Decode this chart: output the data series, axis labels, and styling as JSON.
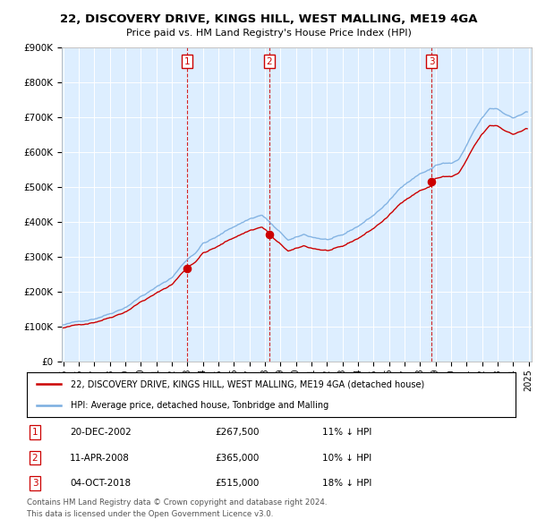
{
  "title1": "22, DISCOVERY DRIVE, KINGS HILL, WEST MALLING, ME19 4GA",
  "title2": "Price paid vs. HM Land Registry's House Price Index (HPI)",
  "ylim": [
    0,
    900000
  ],
  "yticks": [
    0,
    100000,
    200000,
    300000,
    400000,
    500000,
    600000,
    700000,
    800000,
    900000
  ],
  "ytick_labels": [
    "£0",
    "£100K",
    "£200K",
    "£300K",
    "£400K",
    "£500K",
    "£600K",
    "£700K",
    "£800K",
    "£900K"
  ],
  "hpi_color": "#7aade0",
  "sale_color": "#cc0000",
  "dashed_color": "#cc0000",
  "sale_points": [
    {
      "year": 2002.97,
      "price": 267500,
      "label": "1"
    },
    {
      "year": 2008.28,
      "price": 365000,
      "label": "2"
    },
    {
      "year": 2018.75,
      "price": 515000,
      "label": "3"
    }
  ],
  "legend_sale": "22, DISCOVERY DRIVE, KINGS HILL, WEST MALLING, ME19 4GA (detached house)",
  "legend_hpi": "HPI: Average price, detached house, Tonbridge and Malling",
  "table_rows": [
    {
      "num": "1",
      "date": "20-DEC-2002",
      "price": "£267,500",
      "pct": "11% ↓ HPI"
    },
    {
      "num": "2",
      "date": "11-APR-2008",
      "price": "£365,000",
      "pct": "10% ↓ HPI"
    },
    {
      "num": "3",
      "date": "04-OCT-2018",
      "price": "£515,000",
      "pct": "18% ↓ HPI"
    }
  ],
  "footnote1": "Contains HM Land Registry data © Crown copyright and database right 2024.",
  "footnote2": "This data is licensed under the Open Government Licence v3.0.",
  "plot_bg": "#ddeeff"
}
